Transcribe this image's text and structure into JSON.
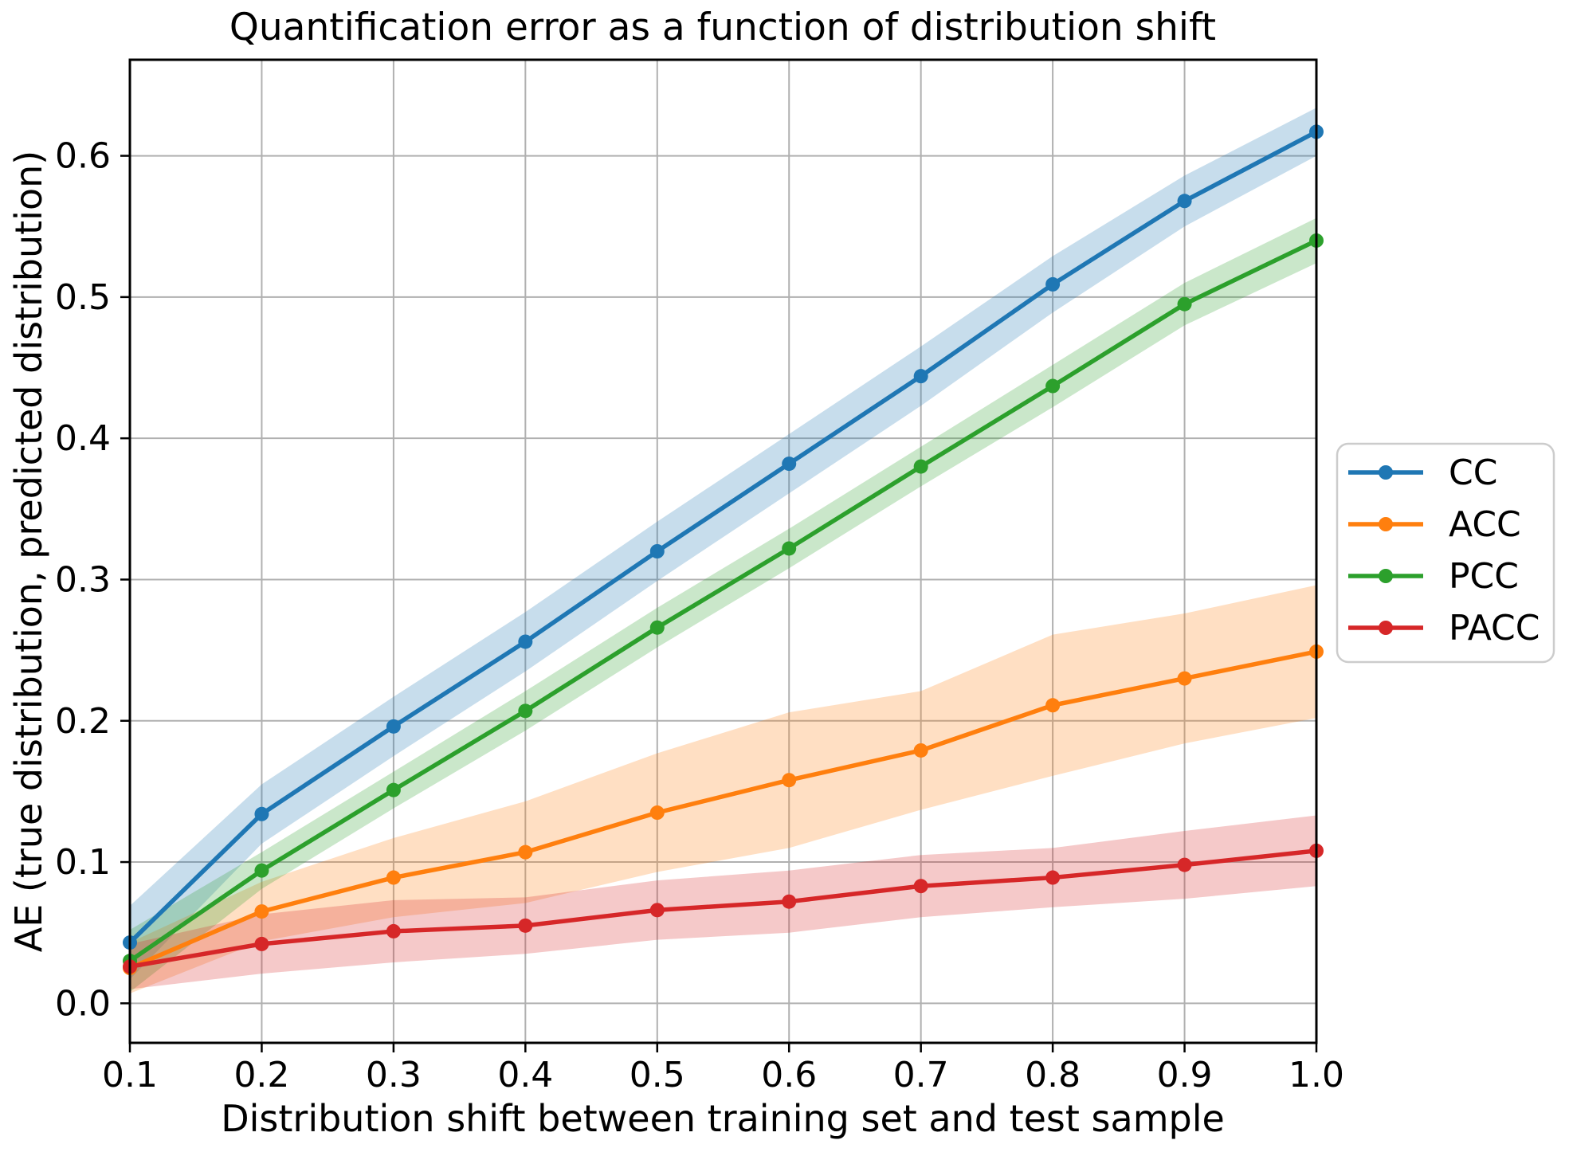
{
  "chart_data": {
    "type": "line",
    "title": "Quantification error as a function of distribution shift",
    "xlabel": "Distribution shift between training set and test sample",
    "ylabel": "AE (true distribution, predicted distribution)",
    "x": [
      0.1,
      0.2,
      0.3,
      0.4,
      0.5,
      0.6,
      0.7,
      0.8,
      0.9,
      1.0
    ],
    "xtick_labels": [
      "0.1",
      "0.2",
      "0.3",
      "0.4",
      "0.5",
      "0.6",
      "0.7",
      "0.8",
      "0.9",
      "1.0"
    ],
    "ytick_values": [
      0.0,
      0.1,
      0.2,
      0.3,
      0.4,
      0.5,
      0.6
    ],
    "ytick_labels": [
      "0.0",
      "0.1",
      "0.2",
      "0.3",
      "0.4",
      "0.5",
      "0.6"
    ],
    "xlim": [
      0.1,
      1.0
    ],
    "ylim": [
      -0.028,
      0.668
    ],
    "grid": true,
    "grid_color": "#b0b0b0",
    "legend_position": "outside-right-center",
    "band_opacity": 0.25,
    "series": [
      {
        "name": "CC",
        "color": "#1f77b4",
        "values": [
          0.043,
          0.134,
          0.196,
          0.256,
          0.32,
          0.382,
          0.444,
          0.509,
          0.568,
          0.617
        ],
        "band_halfwidth": [
          0.026,
          0.021,
          0.021,
          0.021,
          0.021,
          0.021,
          0.021,
          0.02,
          0.018,
          0.017
        ]
      },
      {
        "name": "ACC",
        "color": "#ff7f0e",
        "values": [
          0.025,
          0.065,
          0.089,
          0.107,
          0.135,
          0.158,
          0.179,
          0.211,
          0.23,
          0.249
        ],
        "band_halfwidth": [
          0.018,
          0.021,
          0.028,
          0.036,
          0.042,
          0.048,
          0.042,
          0.05,
          0.046,
          0.047
        ]
      },
      {
        "name": "PCC",
        "color": "#2ca02c",
        "values": [
          0.03,
          0.094,
          0.151,
          0.207,
          0.266,
          0.322,
          0.38,
          0.437,
          0.495,
          0.54
        ],
        "band_halfwidth": [
          0.022,
          0.013,
          0.013,
          0.014,
          0.014,
          0.014,
          0.014,
          0.015,
          0.015,
          0.016
        ]
      },
      {
        "name": "PACC",
        "color": "#d62728",
        "values": [
          0.026,
          0.042,
          0.051,
          0.055,
          0.066,
          0.072,
          0.083,
          0.089,
          0.098,
          0.108
        ],
        "band_halfwidth": [
          0.016,
          0.021,
          0.022,
          0.02,
          0.021,
          0.022,
          0.022,
          0.021,
          0.024,
          0.025
        ]
      }
    ]
  }
}
